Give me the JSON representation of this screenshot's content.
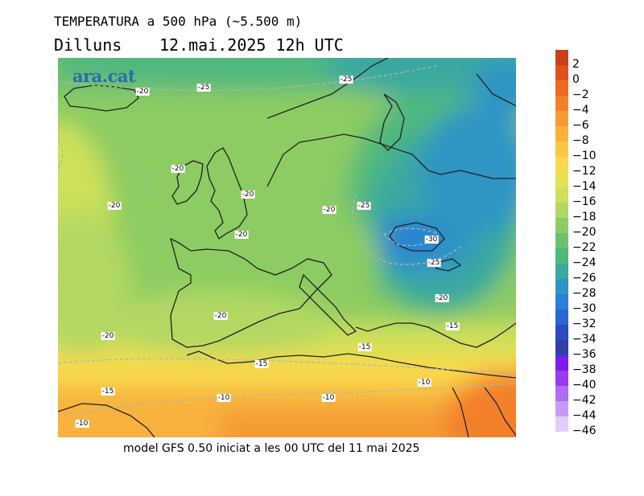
{
  "header": {
    "title": "TEMPERATURA a 500 hPa (~5.500 m)",
    "day": "Dilluns",
    "date_time": "12.mai.2025 12h UTC"
  },
  "logo": {
    "text": "ara.cat"
  },
  "footer": {
    "text": "model GFS 0.50 iniciat a les 00 UTC del 11 mai 2025"
  },
  "contour_labels": [
    "-20",
    "-25",
    "-25",
    "-20",
    "-20",
    "-20",
    "-20",
    "-25",
    "-20",
    "-30",
    "-25",
    "-20",
    "-20",
    "-15",
    "-20",
    "-15",
    "-15",
    "-10",
    "-15",
    "-10",
    "-10",
    "-10"
  ],
  "colorbar": {
    "labels": [
      "2",
      "0",
      "−2",
      "−4",
      "−6",
      "−8",
      "−10",
      "−12",
      "−14",
      "−16",
      "−18",
      "−20",
      "−22",
      "−24",
      "−26",
      "−28",
      "−30",
      "−32",
      "−34",
      "−36",
      "−38",
      "−40",
      "−42",
      "−44",
      "−46"
    ],
    "colors": [
      "#c8401a",
      "#e0521c",
      "#ee6a20",
      "#f2802a",
      "#f59a34",
      "#f8b23c",
      "#fac646",
      "#fad94c",
      "#e9df52",
      "#cfe05a",
      "#b2d862",
      "#8ccc62",
      "#6cc070",
      "#4fb87e",
      "#3aa8a0",
      "#2d95c4",
      "#2a7fd6",
      "#2d66d0",
      "#2c4cbc",
      "#3040a8",
      "#7a1cec",
      "#9a3af2",
      "#b26cf2",
      "#c99af2",
      "#e2cdf8"
    ]
  }
}
